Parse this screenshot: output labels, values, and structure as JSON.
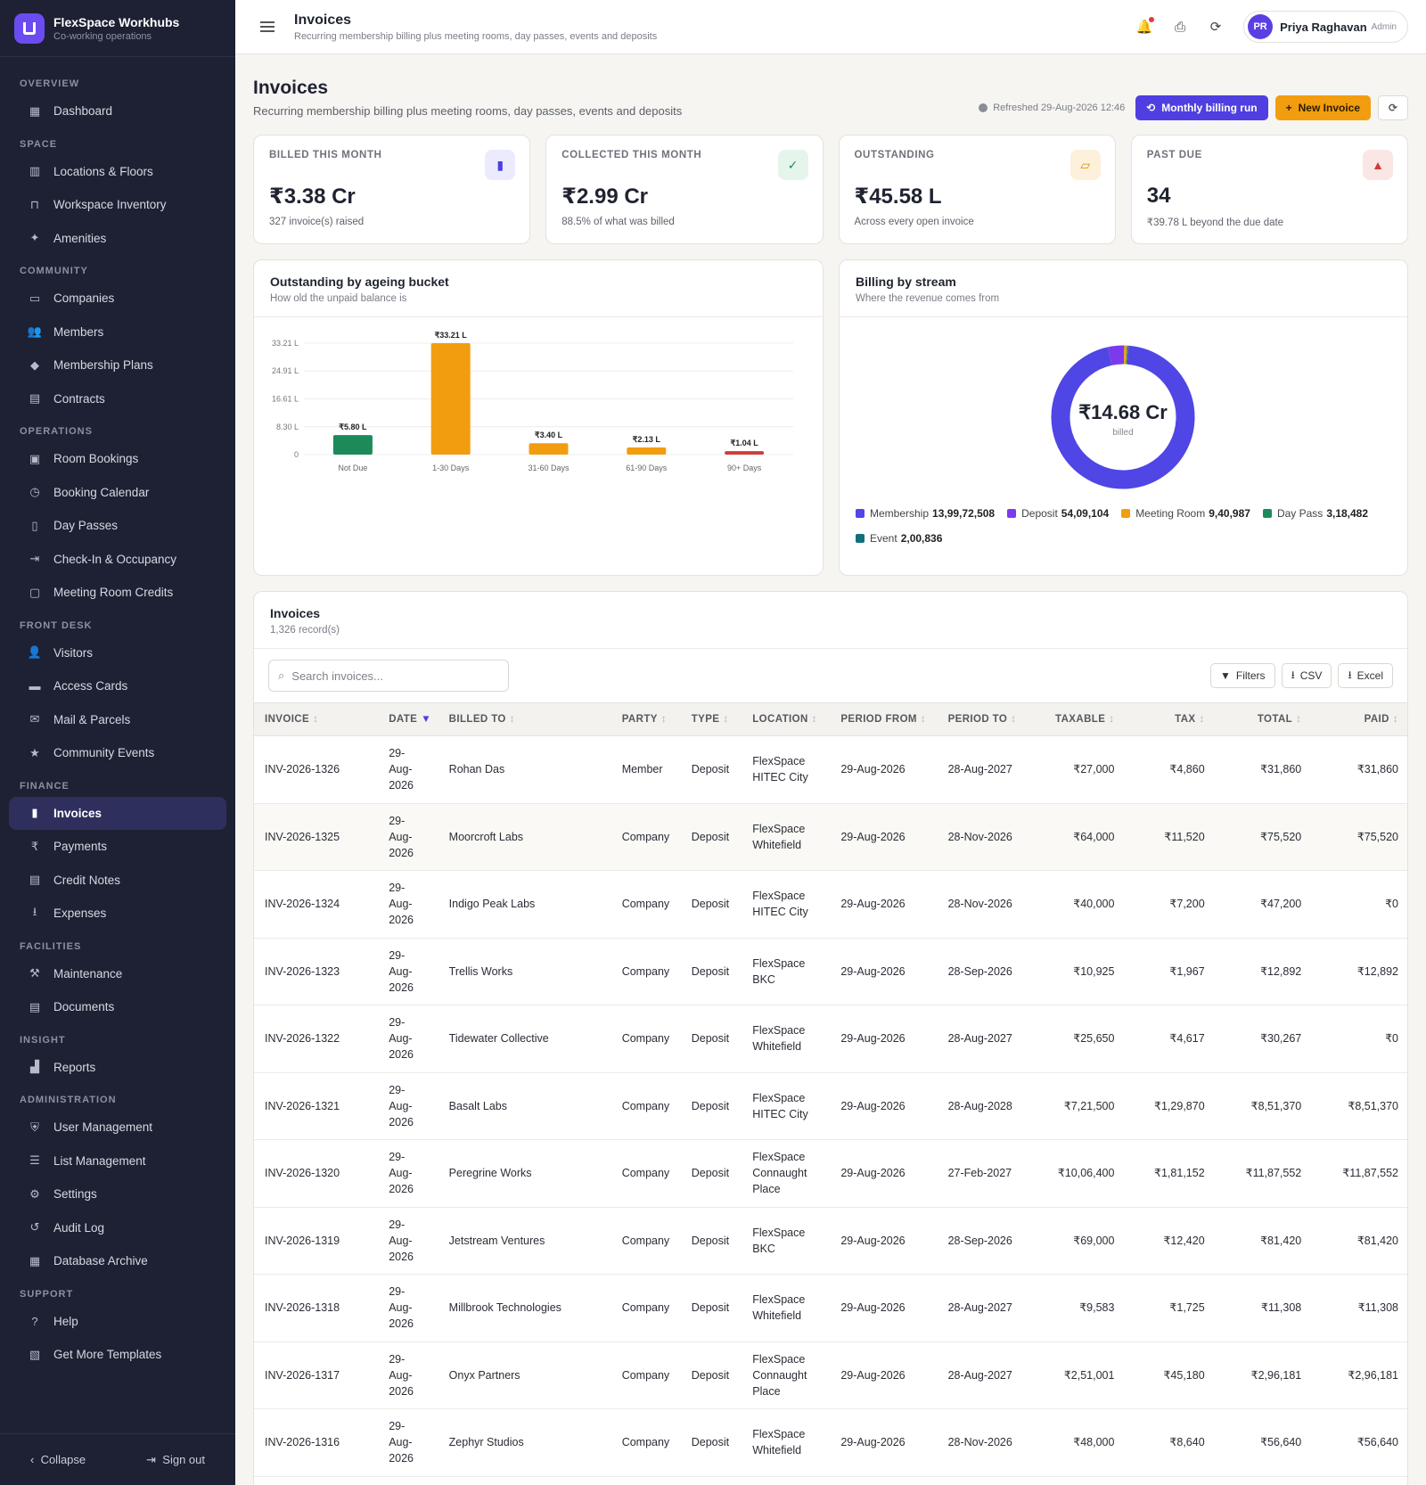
{
  "brand": {
    "title": "FlexSpace Workhubs",
    "subtitle": "Co-working operations"
  },
  "sidebar": {
    "sections": [
      {
        "label": "OVERVIEW",
        "items": [
          {
            "label": "Dashboard",
            "icon": "dashboard-icon"
          }
        ]
      },
      {
        "label": "SPACE",
        "items": [
          {
            "label": "Locations & Floors",
            "icon": "building-icon"
          },
          {
            "label": "Workspace Inventory",
            "icon": "desk-icon"
          },
          {
            "label": "Amenities",
            "icon": "sparkle-icon"
          }
        ]
      },
      {
        "label": "COMMUNITY",
        "items": [
          {
            "label": "Companies",
            "icon": "briefcase-icon"
          },
          {
            "label": "Members",
            "icon": "users-icon"
          },
          {
            "label": "Membership Plans",
            "icon": "tag-icon"
          },
          {
            "label": "Contracts",
            "icon": "document-icon"
          }
        ]
      },
      {
        "label": "OPERATIONS",
        "items": [
          {
            "label": "Room Bookings",
            "icon": "calendar-icon"
          },
          {
            "label": "Booking Calendar",
            "icon": "clock-icon"
          },
          {
            "label": "Day Passes",
            "icon": "ticket-icon"
          },
          {
            "label": "Check-In & Occupancy",
            "icon": "login-icon"
          },
          {
            "label": "Meeting Room Credits",
            "icon": "credit-icon"
          }
        ]
      },
      {
        "label": "FRONT DESK",
        "items": [
          {
            "label": "Visitors",
            "icon": "visitor-icon"
          },
          {
            "label": "Access Cards",
            "icon": "card-icon"
          },
          {
            "label": "Mail & Parcels",
            "icon": "mail-icon"
          },
          {
            "label": "Community Events",
            "icon": "star-icon"
          }
        ]
      },
      {
        "label": "FINANCE",
        "items": [
          {
            "label": "Invoices",
            "icon": "invoice-icon",
            "active": true
          },
          {
            "label": "Payments",
            "icon": "rupee-icon"
          },
          {
            "label": "Credit Notes",
            "icon": "note-icon"
          },
          {
            "label": "Expenses",
            "icon": "download-icon"
          }
        ]
      },
      {
        "label": "FACILITIES",
        "items": [
          {
            "label": "Maintenance",
            "icon": "wrench-icon"
          },
          {
            "label": "Documents",
            "icon": "file-icon"
          }
        ]
      },
      {
        "label": "INSIGHT",
        "items": [
          {
            "label": "Reports",
            "icon": "bar-chart-icon"
          }
        ]
      },
      {
        "label": "ADMINISTRATION",
        "items": [
          {
            "label": "User Management",
            "icon": "shield-icon"
          },
          {
            "label": "List Management",
            "icon": "list-icon"
          },
          {
            "label": "Settings",
            "icon": "gear-icon"
          },
          {
            "label": "Audit Log",
            "icon": "history-icon"
          },
          {
            "label": "Database Archive",
            "icon": "archive-icon"
          }
        ]
      },
      {
        "label": "SUPPORT",
        "items": [
          {
            "label": "Help",
            "icon": "help-icon"
          },
          {
            "label": "Get More Templates",
            "icon": "gift-icon"
          }
        ]
      }
    ],
    "footer": {
      "collapse": "Collapse",
      "signout": "Sign out"
    }
  },
  "topbar": {
    "title": "Invoices",
    "subtitle": "Recurring membership billing plus meeting rooms, day passes, events and deposits",
    "user": {
      "initials": "PR",
      "name": "Priya Raghavan",
      "role": "Admin"
    }
  },
  "page": {
    "title": "Invoices",
    "subtitle": "Recurring membership billing plus meeting rooms, day passes, events and deposits",
    "refreshed": "Refreshed 29-Aug-2026 12:46",
    "billing_run": "Monthly billing run",
    "new_invoice": "New Invoice"
  },
  "kpis": [
    {
      "label": "BILLED THIS MONTH",
      "value": "₹3.38 Cr",
      "note": "327 invoice(s) raised",
      "icon": "invoice-icon",
      "color": "#4f3fe0",
      "bg": "#ecebfd"
    },
    {
      "label": "COLLECTED THIS MONTH",
      "value": "₹2.99 Cr",
      "note": "88.5% of what was billed",
      "icon": "check-icon",
      "color": "#1f8a57",
      "bg": "#e6f5ec"
    },
    {
      "label": "OUTSTANDING",
      "value": "₹45.58 L",
      "note": "Across every open invoice",
      "icon": "wallet-icon",
      "color": "#d98a08",
      "bg": "#fdf1dc"
    },
    {
      "label": "PAST DUE",
      "value": "34",
      "note": "₹39.78 L beyond the due date",
      "icon": "warning-icon",
      "color": "#d23a3a",
      "bg": "#fbe6e6"
    }
  ],
  "ageing": {
    "title": "Outstanding by ageing bucket",
    "subtitle": "How old the unpaid balance is"
  },
  "stream": {
    "title": "Billing by stream",
    "subtitle": "Where the revenue comes from",
    "center_value": "₹14.68 Cr",
    "center_label": "billed"
  },
  "chart_data": [
    {
      "type": "bar",
      "categories": [
        "Not Due",
        "1-30 Days",
        "31-60 Days",
        "61-90 Days",
        "90+ Days"
      ],
      "values": [
        5.8,
        33.21,
        3.4,
        2.13,
        1.04
      ],
      "data_labels": [
        "₹5.80 L",
        "₹33.21 L",
        "₹3.40 L",
        "₹2.13 L",
        "₹1.04 L"
      ],
      "colors": [
        "#1d8a5a",
        "#f29d0f",
        "#f29d0f",
        "#f29d0f",
        "#d23a3a"
      ],
      "yticks": [
        0,
        8.3,
        16.61,
        24.91,
        33.21
      ],
      "ytick_labels": [
        "0",
        "8.30 L",
        "16.61 L",
        "24.91 L",
        "33.21 L"
      ],
      "ylim": [
        0,
        33.21
      ],
      "grid": true
    },
    {
      "type": "pie",
      "donut": true,
      "series": [
        {
          "name": "Membership",
          "value": 139972508,
          "display": "13,99,72,508",
          "color": "#4f46e5"
        },
        {
          "name": "Deposit",
          "value": 5409104,
          "display": "54,09,104",
          "color": "#7c3aed"
        },
        {
          "name": "Meeting Room",
          "value": 940987,
          "display": "9,40,987",
          "color": "#f29d0f"
        },
        {
          "name": "Day Pass",
          "value": 318482,
          "display": "3,18,482",
          "color": "#1d8a5a"
        },
        {
          "name": "Event",
          "value": 200836,
          "display": "2,00,836",
          "color": "#13707a"
        }
      ],
      "legend": "bottom"
    }
  ],
  "table": {
    "title": "Invoices",
    "count": "1,326 record(s)",
    "search_placeholder": "Search invoices...",
    "filters": "Filters",
    "csv": "CSV",
    "excel": "Excel",
    "columns": [
      "INVOICE",
      "DATE",
      "BILLED TO",
      "PARTY",
      "TYPE",
      "LOCATION",
      "PERIOD FROM",
      "PERIOD TO",
      "TAXABLE",
      "TAX",
      "TOTAL",
      "PAID"
    ],
    "rows": [
      [
        "INV-2026-1326",
        "29-Aug-2026",
        "Rohan Das",
        "Member",
        "Deposit",
        "FlexSpace HITEC City",
        "29-Aug-2026",
        "28-Aug-2027",
        "₹27,000",
        "₹4,860",
        "₹31,860",
        "₹31,860"
      ],
      [
        "INV-2026-1325",
        "29-Aug-2026",
        "Moorcroft Labs",
        "Company",
        "Deposit",
        "FlexSpace Whitefield",
        "29-Aug-2026",
        "28-Nov-2026",
        "₹64,000",
        "₹11,520",
        "₹75,520",
        "₹75,520"
      ],
      [
        "INV-2026-1324",
        "29-Aug-2026",
        "Indigo Peak Labs",
        "Company",
        "Deposit",
        "FlexSpace HITEC City",
        "29-Aug-2026",
        "28-Nov-2026",
        "₹40,000",
        "₹7,200",
        "₹47,200",
        "₹0"
      ],
      [
        "INV-2026-1323",
        "29-Aug-2026",
        "Trellis Works",
        "Company",
        "Deposit",
        "FlexSpace BKC",
        "29-Aug-2026",
        "28-Sep-2026",
        "₹10,925",
        "₹1,967",
        "₹12,892",
        "₹12,892"
      ],
      [
        "INV-2026-1322",
        "29-Aug-2026",
        "Tidewater Collective",
        "Company",
        "Deposit",
        "FlexSpace Whitefield",
        "29-Aug-2026",
        "28-Aug-2027",
        "₹25,650",
        "₹4,617",
        "₹30,267",
        "₹0"
      ],
      [
        "INV-2026-1321",
        "29-Aug-2026",
        "Basalt Labs",
        "Company",
        "Deposit",
        "FlexSpace HITEC City",
        "29-Aug-2026",
        "28-Aug-2028",
        "₹7,21,500",
        "₹1,29,870",
        "₹8,51,370",
        "₹8,51,370"
      ],
      [
        "INV-2026-1320",
        "29-Aug-2026",
        "Peregrine Works",
        "Company",
        "Deposit",
        "FlexSpace Connaught Place",
        "29-Aug-2026",
        "27-Feb-2027",
        "₹10,06,400",
        "₹1,81,152",
        "₹11,87,552",
        "₹11,87,552"
      ],
      [
        "INV-2026-1319",
        "29-Aug-2026",
        "Jetstream Ventures",
        "Company",
        "Deposit",
        "FlexSpace BKC",
        "29-Aug-2026",
        "28-Sep-2026",
        "₹69,000",
        "₹12,420",
        "₹81,420",
        "₹81,420"
      ],
      [
        "INV-2026-1318",
        "29-Aug-2026",
        "Millbrook Technologies",
        "Company",
        "Deposit",
        "FlexSpace Whitefield",
        "29-Aug-2026",
        "28-Aug-2027",
        "₹9,583",
        "₹1,725",
        "₹11,308",
        "₹11,308"
      ],
      [
        "INV-2026-1317",
        "29-Aug-2026",
        "Onyx Partners",
        "Company",
        "Deposit",
        "FlexSpace Connaught Place",
        "29-Aug-2026",
        "28-Aug-2027",
        "₹2,51,001",
        "₹45,180",
        "₹2,96,181",
        "₹2,96,181"
      ],
      [
        "INV-2026-1316",
        "29-Aug-2026",
        "Zephyr Studios",
        "Company",
        "Deposit",
        "FlexSpace Whitefield",
        "29-Aug-2026",
        "28-Nov-2026",
        "₹48,000",
        "₹8,640",
        "₹56,640",
        "₹56,640"
      ]
    ]
  }
}
